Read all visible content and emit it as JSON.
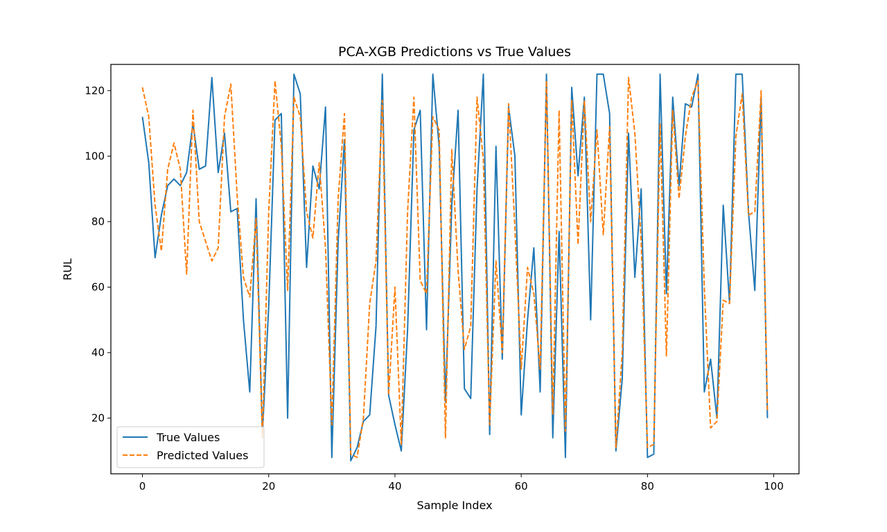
{
  "chart_data": {
    "type": "line",
    "title": "PCA-XGB Predictions vs True Values",
    "xlabel": "Sample Index",
    "ylabel": "RUL",
    "xlim": [
      -5,
      104
    ],
    "ylim": [
      3,
      128
    ],
    "x_ticks": [
      0,
      20,
      40,
      60,
      80,
      100
    ],
    "y_ticks": [
      20,
      40,
      60,
      80,
      100,
      120
    ],
    "grid": false,
    "legend_position": "lower-left",
    "series": [
      {
        "name": "True Values",
        "color": "#1f77b4",
        "style": "solid",
        "values": [
          112,
          98,
          69,
          82,
          91,
          93,
          91,
          95,
          110,
          96,
          97,
          124,
          95,
          107,
          83,
          84,
          50,
          28,
          87,
          15,
          54,
          111,
          113,
          20,
          125,
          119,
          66,
          97,
          90,
          115,
          8,
          74,
          105,
          7,
          11,
          19,
          21,
          48,
          125,
          27,
          18,
          10,
          47,
          108,
          114,
          47,
          125,
          103,
          25,
          85,
          114,
          29,
          26,
          90,
          125,
          15,
          103,
          38,
          115,
          100,
          21,
          50,
          72,
          28,
          125,
          14,
          77,
          8,
          121,
          94,
          118,
          50,
          125,
          125,
          113,
          10,
          32,
          107,
          63,
          90,
          8,
          9,
          125,
          58,
          118,
          91,
          116,
          115,
          125,
          28,
          38,
          20,
          85,
          55,
          125,
          125,
          83,
          59,
          118,
          20
        ]
      },
      {
        "name": "Predicted Values",
        "color": "#ff7f0e",
        "style": "dashed",
        "values": [
          121,
          112,
          85,
          71,
          96,
          104,
          96,
          64,
          114,
          80,
          74,
          68,
          72,
          112,
          122,
          88,
          63,
          57,
          81,
          14,
          83,
          123,
          103,
          59,
          118,
          112,
          83,
          75,
          98,
          72,
          18,
          87,
          113,
          9,
          8,
          20,
          55,
          68,
          117,
          27,
          60,
          12,
          83,
          118,
          62,
          58,
          112,
          108,
          14,
          102,
          65,
          41,
          48,
          118,
          99,
          18,
          68,
          40,
          116,
          78,
          35,
          66,
          58,
          35,
          123,
          21,
          114,
          16,
          117,
          73,
          117,
          80,
          108,
          76,
          109,
          11,
          40,
          124,
          107,
          74,
          11,
          12,
          110,
          39,
          114,
          87,
          106,
          118,
          123,
          60,
          17,
          19,
          56,
          55,
          106,
          119,
          82,
          83,
          120,
          22
        ]
      }
    ]
  }
}
